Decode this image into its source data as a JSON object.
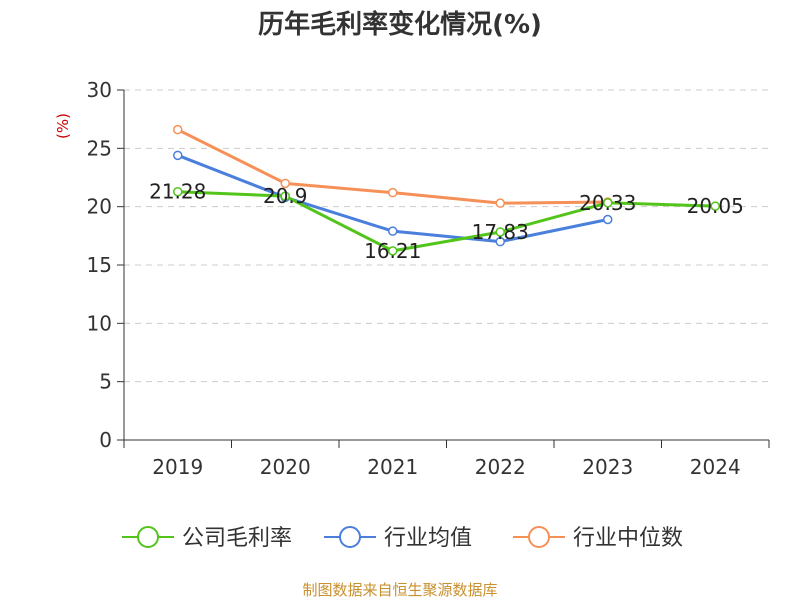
{
  "chart_data": {
    "type": "line",
    "title": "历年毛利率变化情况(%)",
    "ylabel": "(%)",
    "xlabel": "",
    "categories": [
      "2019",
      "2020",
      "2021",
      "2022",
      "2023",
      "2024"
    ],
    "ylim": [
      0,
      30
    ],
    "yticks": [
      0,
      5,
      10,
      15,
      20,
      25,
      30
    ],
    "grid": true,
    "legend_position": "bottom",
    "series": [
      {
        "name": "公司毛利率",
        "color": "#52c41a",
        "values": [
          21.28,
          20.9,
          16.21,
          17.83,
          20.33,
          20.05
        ],
        "labels": [
          "21.28",
          "20.9",
          "16.21",
          "17.83",
          "20.33",
          "20.05"
        ]
      },
      {
        "name": "行业均值",
        "color": "#4a7fdc",
        "values": [
          24.4,
          20.8,
          17.9,
          17.0,
          18.9,
          null
        ]
      },
      {
        "name": "行业中位数",
        "color": "#f59058",
        "values": [
          26.6,
          22.0,
          21.2,
          20.3,
          20.4,
          null
        ]
      }
    ]
  },
  "source": {
    "text": "制图数据来自恒生聚源数据库",
    "color": "#c8902e"
  },
  "colors": {
    "ylabel": "#cc0000",
    "grid": "#cccccc",
    "axis": "#333333"
  }
}
